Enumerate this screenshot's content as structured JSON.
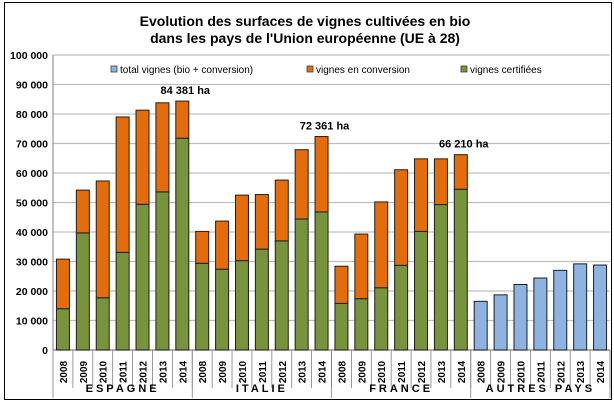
{
  "chart_data": {
    "type": "bar",
    "stacked": true,
    "title": [
      "Evolution des surfaces de vignes cultivées en bio",
      "dans les pays de l'Union européenne (UE à 28)"
    ],
    "ylim": [
      0,
      100000
    ],
    "yticks": [
      0,
      10000,
      20000,
      30000,
      40000,
      50000,
      60000,
      70000,
      80000,
      90000,
      100000
    ],
    "ytick_labels": [
      "0",
      "10 000",
      "20 000",
      "30 000",
      "40 000",
      "50 000",
      "60 000",
      "70 000",
      "80 000",
      "90 000",
      "100 000"
    ],
    "grid": true,
    "legend_placement": "top",
    "groups": [
      {
        "name": "ESPAGNE",
        "years": [
          "2008",
          "2009",
          "2010",
          "2011",
          "2012",
          "2013",
          "2014"
        ],
        "certifiees": [
          14000,
          39700,
          17700,
          33100,
          49400,
          53600,
          71800
        ],
        "conversion": [
          16800,
          14500,
          39600,
          45900,
          31900,
          30200,
          12581
        ],
        "total": null,
        "annotation": "84 381 ha"
      },
      {
        "name": "ITALIE",
        "years": [
          "2008",
          "2009",
          "2010",
          "2011",
          "2012",
          "2013",
          "2014"
        ],
        "certifiees": [
          29400,
          27400,
          30300,
          34200,
          37000,
          44400,
          46800
        ],
        "conversion": [
          10800,
          16300,
          22200,
          18500,
          20600,
          23500,
          25561
        ],
        "total": null,
        "annotation": "72  361 ha"
      },
      {
        "name": "FRANCE",
        "years": [
          "2008",
          "2009",
          "2010",
          "2011",
          "2012",
          "2013",
          "2014"
        ],
        "certifiees": [
          15800,
          17400,
          21100,
          28700,
          40200,
          49300,
          54500
        ],
        "conversion": [
          12600,
          21900,
          29100,
          32400,
          24600,
          15500,
          11710
        ],
        "total": null,
        "annotation": "66 210 ha"
      },
      {
        "name": "AUTRES   PAYS",
        "years": [
          "2008",
          "2009",
          "2010",
          "2011",
          "2012",
          "2013",
          "2014"
        ],
        "certifiees": null,
        "conversion": null,
        "total": [
          16500,
          18700,
          22200,
          24400,
          27000,
          29200,
          28800
        ],
        "annotation": ""
      }
    ],
    "legend": [
      {
        "key": "total",
        "label": "total vignes (bio + conversion)"
      },
      {
        "key": "conversion",
        "label": "vignes en conversion"
      },
      {
        "key": "certifiees",
        "label": "vignes certifiées"
      }
    ],
    "colors": {
      "total": "#8DB3E2",
      "conversion": "#E46C0A",
      "certifiees": "#77933C",
      "grid": "#BFBFBF"
    }
  }
}
